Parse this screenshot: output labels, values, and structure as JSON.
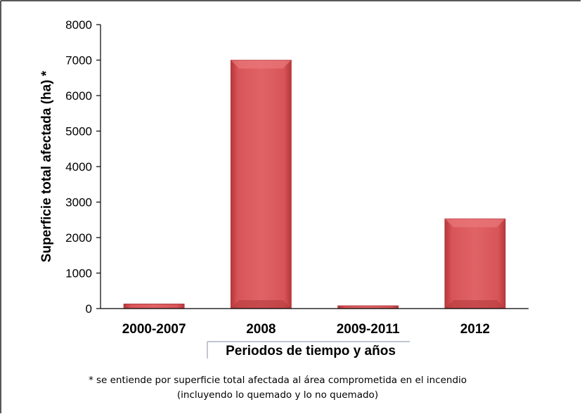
{
  "chart_data": {
    "type": "bar",
    "categories": [
      "2000-2007",
      "2008",
      "2009-2011",
      "2012"
    ],
    "values": [
      130,
      7000,
      80,
      2530
    ],
    "ylabel": "Superficie total afectada (ha) *",
    "xlabel": "Periodos de tiempo y años",
    "ylim": [
      0,
      8000
    ],
    "yticks": [
      0,
      1000,
      2000,
      3000,
      4000,
      5000,
      6000,
      7000,
      8000
    ],
    "grid": false,
    "legend": "none",
    "bar_color": "#cf4a4d",
    "footnote_lines": [
      "* se entiende por superficie total afectada al área comprometida en el incendio",
      "(incluyendo lo quemado y lo no quemado)"
    ]
  }
}
